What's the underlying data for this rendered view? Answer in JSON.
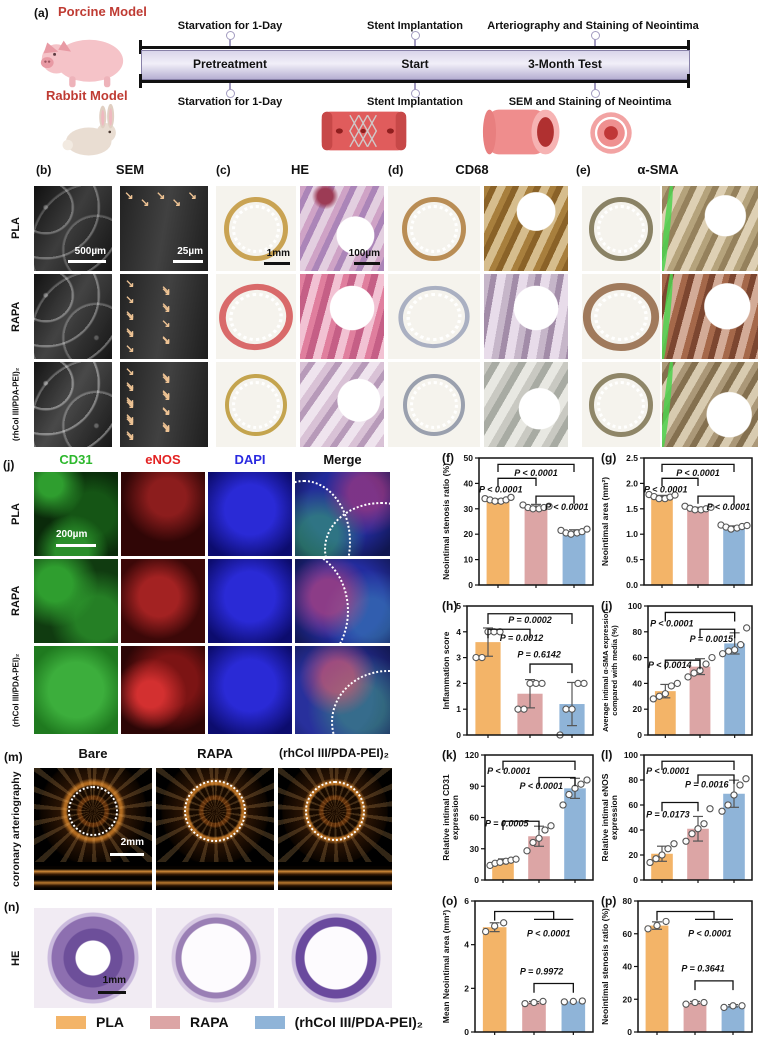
{
  "groups": [
    "PLA",
    "RAPA",
    "(rhCol III/PDA-PEI)₂"
  ],
  "panel_a": {
    "letter": "(a)",
    "porcine_label": "Porcine Model",
    "rabbit_label": "Rabbit Model",
    "timeline_top": [
      "Starvation for 1-Day",
      "Stent Implantation",
      "Arteriography and Staining of Neointima"
    ],
    "timeline_bar": [
      "Pretreatment",
      "Start",
      "3-Month Test"
    ],
    "timeline_bottom": [
      "Starvation for 1-Day",
      "Stent Implantation",
      "SEM and Staining of Neointima"
    ]
  },
  "histology": {
    "letters": {
      "b": "(b)",
      "c": "(c)",
      "d": "(d)",
      "e": "(e)"
    },
    "headers": {
      "b": "SEM",
      "c": "HE",
      "d": "CD68",
      "e": "α-SMA"
    },
    "sem_arrow_counts": [
      5,
      14,
      22
    ],
    "arrow_glyph": "↘",
    "scale_bars": {
      "b_low": "500µm",
      "b_high": "25µm",
      "c_low": "1mm",
      "c_high": "100µm"
    }
  },
  "fluorescence": {
    "letter": "(j)",
    "headers": [
      {
        "label": "CD31",
        "color": "#2db82d"
      },
      {
        "label": "eNOS",
        "color": "#e32222"
      },
      {
        "label": "DAPI",
        "color": "#2a2ae0"
      },
      {
        "label": "Merge",
        "color": "#111111"
      }
    ],
    "scale_bar": "200µm"
  },
  "oct": {
    "letter": "(m)",
    "headers": [
      "Bare",
      "RAPA",
      "(rhCol III/PDA-PEI)₂"
    ],
    "row_label": "coronary arteriography",
    "scale_bar": "2mm"
  },
  "he_rabbit": {
    "letter": "(n)",
    "row_label": "HE",
    "scale_bar": "1mm"
  },
  "legend": {
    "items": [
      {
        "label": "PLA",
        "color": "#f3b468"
      },
      {
        "label": "RAPA",
        "color": "#dca5a5"
      },
      {
        "label": "(rhCol III/PDA-PEI)₂",
        "color": "#8fb4d8"
      }
    ]
  },
  "chart_data": [
    {
      "id": "f",
      "letter": "(f)",
      "type": "bar",
      "ylabel": "Neointimal stenosis ratio (%)",
      "ylim": [
        0,
        50
      ],
      "ystep": 10,
      "categories": [
        "PLA",
        "RAPA",
        "(rhCol III/PDA-PEI)₂"
      ],
      "values": [
        33,
        31,
        21
      ],
      "points": [
        [
          34,
          33.5,
          33,
          33,
          33.5,
          34.5
        ],
        [
          31.5,
          30.5,
          30,
          30,
          30.5,
          31
        ],
        [
          21.5,
          20.5,
          20,
          20.5,
          21,
          22
        ]
      ],
      "p_annotations": [
        {
          "text": "P < 0.0001",
          "x": 50,
          "y": 14,
          "anchor": "middle"
        },
        {
          "text": "P < 0.0001",
          "x": 0,
          "y": 27,
          "anchor": "start"
        },
        {
          "text": "P < 0.0001",
          "x": 58,
          "y": 41,
          "anchor": "start"
        }
      ],
      "sig_lines": [
        [
          [
            0,
            11
          ],
          [
            0,
            5
          ],
          [
            2,
            5
          ],
          [
            2,
            11
          ]
        ],
        [
          [
            0,
            22
          ],
          [
            0,
            16
          ],
          [
            1,
            16
          ],
          [
            1,
            22
          ]
        ],
        [
          [
            1,
            36
          ],
          [
            1,
            30
          ],
          [
            2,
            30
          ],
          [
            2,
            36
          ]
        ]
      ]
    },
    {
      "id": "g",
      "letter": "(g)",
      "type": "bar",
      "ylabel": "Neointimal area (mm²)",
      "ylim": [
        0,
        2.5
      ],
      "ystep": 0.5,
      "categories": [
        "PLA",
        "RAPA",
        "(rhCol III/PDA-PEI)₂"
      ],
      "values": [
        1.73,
        1.5,
        1.13
      ],
      "points": [
        [
          1.78,
          1.74,
          1.7,
          1.7,
          1.73,
          1.77
        ],
        [
          1.55,
          1.51,
          1.48,
          1.48,
          1.5,
          1.53
        ],
        [
          1.18,
          1.14,
          1.1,
          1.12,
          1.15,
          1.17
        ]
      ],
      "p_annotations": [
        {
          "text": "P < 0.0001",
          "x": 50,
          "y": 14,
          "anchor": "middle"
        },
        {
          "text": "P < 0.0001",
          "x": 0,
          "y": 27,
          "anchor": "start"
        },
        {
          "text": "P < 0.0001",
          "x": 58,
          "y": 41,
          "anchor": "start"
        }
      ],
      "sig_lines": [
        [
          [
            0,
            11
          ],
          [
            0,
            5
          ],
          [
            2,
            5
          ],
          [
            2,
            11
          ]
        ],
        [
          [
            0,
            22
          ],
          [
            0,
            16
          ],
          [
            1,
            16
          ],
          [
            1,
            22
          ]
        ],
        [
          [
            1,
            36
          ],
          [
            1,
            30
          ],
          [
            2,
            30
          ],
          [
            2,
            36
          ]
        ]
      ]
    },
    {
      "id": "h",
      "letter": "(h)",
      "type": "bar",
      "ylabel": "Inflammation score",
      "ylim": [
        0,
        5
      ],
      "ystep": 1,
      "categories": [
        "PLA",
        "RAPA",
        "(rhCol III/PDA-PEI)₂"
      ],
      "values": [
        3.6,
        1.6,
        1.2
      ],
      "points": [
        [
          3,
          3,
          4,
          4,
          4
        ],
        [
          1,
          1,
          2,
          2,
          2
        ],
        [
          0,
          1,
          1,
          2,
          2
        ]
      ],
      "p_annotations": [
        {
          "text": "P = 0.0002",
          "x": 50,
          "y": 13,
          "anchor": "middle"
        },
        {
          "text": "P = 0.0012",
          "x": 26,
          "y": 27,
          "anchor": "start"
        },
        {
          "text": "P = 0.6142",
          "x": 40,
          "y": 40,
          "anchor": "start"
        }
      ],
      "sig_lines": [
        [
          [
            0,
            14
          ],
          [
            0,
            6
          ],
          [
            2,
            6
          ],
          [
            2,
            14
          ]
        ],
        [
          [
            0,
            25
          ],
          [
            0,
            18
          ],
          [
            1,
            18
          ],
          [
            1,
            25
          ]
        ],
        [
          [
            1,
            52
          ],
          [
            1,
            45
          ],
          [
            2,
            45
          ],
          [
            2,
            52
          ]
        ]
      ]
    },
    {
      "id": "i",
      "letter": "(i)",
      "type": "bar",
      "ylabel": "Average intimal α-SMA expression\ncompared with media (%)",
      "ylim": [
        0,
        100
      ],
      "ystep": 20,
      "categories": [
        "PLA",
        "RAPA",
        "(rhCol III/PDA-PEI)₂"
      ],
      "values": [
        34,
        53,
        71
      ],
      "points": [
        [
          28,
          30,
          32,
          38,
          40
        ],
        [
          45,
          48,
          50,
          55,
          60
        ],
        [
          63,
          65,
          66,
          70,
          83
        ]
      ],
      "p_annotations": [
        {
          "text": "P < 0.0001",
          "x": 2,
          "y": 16,
          "anchor": "start"
        },
        {
          "text": "P = 0.0015",
          "x": 40,
          "y": 28,
          "anchor": "start"
        },
        {
          "text": "P < 0.0014",
          "x": 0,
          "y": 48,
          "anchor": "start"
        }
      ],
      "sig_lines": [
        [
          [
            0,
            12
          ],
          [
            0,
            5
          ],
          [
            2,
            5
          ],
          [
            2,
            12
          ]
        ],
        [
          [
            1,
            25
          ],
          [
            1,
            18
          ],
          [
            2,
            18
          ],
          [
            2,
            25
          ]
        ],
        [
          [
            0,
            49
          ],
          [
            0,
            42
          ],
          [
            1,
            42
          ],
          [
            1,
            49
          ]
        ]
      ]
    },
    {
      "id": "k",
      "letter": "(k)",
      "type": "bar",
      "ylabel": "Relative intimal CD31\nexpression",
      "ylim": [
        0,
        120
      ],
      "ystep": 30,
      "categories": [
        "PLA",
        "RAPA",
        "(rhCol III/PDA-PEI)₂"
      ],
      "values": [
        18,
        42,
        88
      ],
      "points": [
        [
          14,
          16,
          17,
          18,
          19,
          20
        ],
        [
          28,
          36,
          40,
          48,
          52
        ],
        [
          72,
          82,
          88,
          92,
          96
        ]
      ],
      "p_annotations": [
        {
          "text": "P < 0.0001",
          "x": 2,
          "y": 15,
          "anchor": "start"
        },
        {
          "text": "P < 0.0001",
          "x": 32,
          "y": 27,
          "anchor": "start"
        },
        {
          "text": "P = 0.0005",
          "x": 0,
          "y": 57,
          "anchor": "start"
        }
      ],
      "sig_lines": [
        [
          [
            0,
            12
          ],
          [
            0,
            5
          ],
          [
            2,
            5
          ],
          [
            2,
            12
          ]
        ],
        [
          [
            1,
            25
          ],
          [
            1,
            18
          ],
          [
            2,
            18
          ],
          [
            2,
            25
          ]
        ],
        [
          [
            0,
            60
          ],
          [
            0,
            53
          ],
          [
            1,
            53
          ],
          [
            1,
            60
          ]
        ]
      ]
    },
    {
      "id": "l",
      "letter": "(l)",
      "type": "bar",
      "ylabel": "Relative intimal eNOS\nexpression",
      "ylim": [
        0,
        100
      ],
      "ystep": 20,
      "categories": [
        "PLA",
        "RAPA",
        "(rhCol III/PDA-PEI)₂"
      ],
      "values": [
        21,
        41,
        69
      ],
      "points": [
        [
          14,
          17,
          20,
          25,
          29
        ],
        [
          31,
          37,
          41,
          45,
          57
        ],
        [
          55,
          60,
          68,
          76,
          81
        ]
      ],
      "p_annotations": [
        {
          "text": "P < 0.0001",
          "x": 2,
          "y": 15,
          "anchor": "start"
        },
        {
          "text": "P = 0.0016",
          "x": 38,
          "y": 26,
          "anchor": "start"
        },
        {
          "text": "P = 0.0173",
          "x": 2,
          "y": 50,
          "anchor": "start"
        }
      ],
      "sig_lines": [
        [
          [
            0,
            12
          ],
          [
            0,
            5
          ],
          [
            2,
            5
          ],
          [
            2,
            12
          ]
        ],
        [
          [
            1,
            23
          ],
          [
            1,
            16
          ],
          [
            2,
            16
          ],
          [
            2,
            23
          ]
        ],
        [
          [
            0,
            45
          ],
          [
            0,
            38
          ],
          [
            1,
            38
          ],
          [
            1,
            45
          ]
        ]
      ]
    },
    {
      "id": "o",
      "letter": "(o)",
      "type": "bar",
      "ylabel": "Mean Neointimal area (mm²)",
      "ylim": [
        0,
        6
      ],
      "ystep": 2,
      "categories": [
        "PLA",
        "RAPA",
        "(rhCol III/PDA-PEI)₂"
      ],
      "values": [
        4.8,
        1.35,
        1.4
      ],
      "points": [
        [
          4.6,
          4.85,
          5.0
        ],
        [
          1.3,
          1.35,
          1.4
        ],
        [
          1.38,
          1.4,
          1.42
        ]
      ],
      "p_annotations": [
        {
          "text": "P < 0.0001",
          "x": 44,
          "y": 27,
          "anchor": "start"
        },
        {
          "text": "P = 0.9972",
          "x": 38,
          "y": 56,
          "anchor": "start"
        }
      ],
      "sig_lines": [
        [
          [
            0,
            15
          ],
          [
            0,
            8
          ],
          [
            1.5,
            8
          ],
          [
            1.5,
            14
          ]
        ],
        [
          [
            1,
            14
          ],
          [
            2,
            14
          ]
        ],
        [
          [
            1,
            70
          ],
          [
            1,
            63
          ],
          [
            2,
            63
          ],
          [
            2,
            70
          ]
        ]
      ]
    },
    {
      "id": "p",
      "letter": "(p)",
      "type": "bar",
      "ylabel": "Neointimal stenosis ratio (%)",
      "ylim": [
        0,
        80
      ],
      "ystep": 20,
      "categories": [
        "PLA",
        "RAPA",
        "(rhCol III/PDA-PEI)₂"
      ],
      "values": [
        65,
        18,
        16
      ],
      "points": [
        [
          63,
          65,
          67.5
        ],
        [
          17,
          18,
          18
        ],
        [
          15,
          16,
          16
        ]
      ],
      "p_annotations": [
        {
          "text": "P < 0.0001",
          "x": 44,
          "y": 27,
          "anchor": "start"
        },
        {
          "text": "P = 0.3641",
          "x": 38,
          "y": 54,
          "anchor": "start"
        }
      ],
      "sig_lines": [
        [
          [
            0,
            15
          ],
          [
            0,
            8
          ],
          [
            1.5,
            8
          ],
          [
            1.5,
            14
          ]
        ],
        [
          [
            1,
            14
          ],
          [
            2,
            14
          ]
        ],
        [
          [
            1,
            68
          ],
          [
            1,
            61
          ],
          [
            2,
            61
          ],
          [
            2,
            68
          ]
        ]
      ]
    }
  ]
}
